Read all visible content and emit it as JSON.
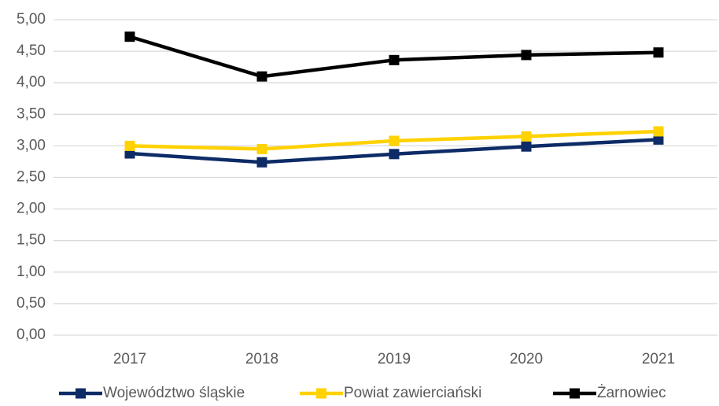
{
  "chart_data": {
    "type": "line",
    "categories": [
      "2017",
      "2018",
      "2019",
      "2020",
      "2021"
    ],
    "series": [
      {
        "name": "Województwo śląskie",
        "color": "#0d2b66",
        "values": [
          2.88,
          2.74,
          2.87,
          2.99,
          3.1
        ]
      },
      {
        "name": "Powiat zawierciański",
        "color": "#ffd200",
        "values": [
          3.0,
          2.95,
          3.08,
          3.15,
          3.23
        ]
      },
      {
        "name": "Żarnowiec",
        "color": "#000000",
        "values": [
          4.73,
          4.1,
          4.36,
          4.44,
          4.48
        ]
      }
    ],
    "ylim": [
      0,
      5
    ],
    "yticks": [
      {
        "value": 0,
        "label": "0,00"
      },
      {
        "value": 0.5,
        "label": "0,50"
      },
      {
        "value": 1,
        "label": "1,00"
      },
      {
        "value": 1.5,
        "label": "1,50"
      },
      {
        "value": 2,
        "label": "2,00"
      },
      {
        "value": 2.5,
        "label": "2,50"
      },
      {
        "value": 3,
        "label": "3,00"
      },
      {
        "value": 3.5,
        "label": "3,50"
      },
      {
        "value": 4,
        "label": "4,00"
      },
      {
        "value": 4.5,
        "label": "4,50"
      },
      {
        "value": 5,
        "label": "5,00"
      }
    ],
    "grid": true,
    "legend": "bottom"
  }
}
